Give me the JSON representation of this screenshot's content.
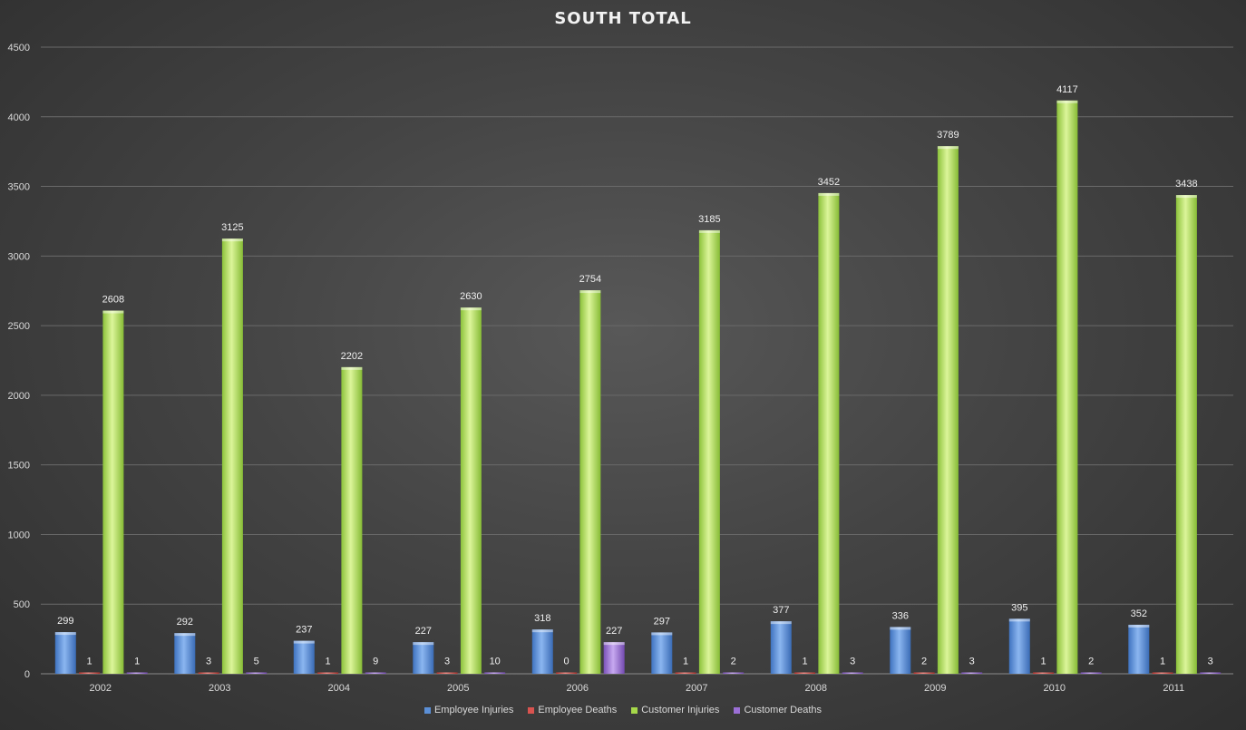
{
  "chart_data": {
    "type": "bar",
    "title": "SOUTH  TOTAL",
    "xlabel": "",
    "ylabel": "",
    "ylim": [
      0,
      4500
    ],
    "yticks": [
      0,
      500,
      1000,
      1500,
      2000,
      2500,
      3000,
      3500,
      4000,
      4500
    ],
    "grid": true,
    "legend_position": "bottom",
    "categories": [
      "2002",
      "2003",
      "2004",
      "2005",
      "2006",
      "2007",
      "2008",
      "2009",
      "2010",
      "2011"
    ],
    "series": [
      {
        "name": "Employee Injuries",
        "color": "#5b8fd6",
        "values": [
          299,
          292,
          237,
          227,
          318,
          297,
          377,
          336,
          395,
          352
        ]
      },
      {
        "name": "Employee Deaths",
        "color": "#d9534f",
        "values": [
          1,
          3,
          1,
          3,
          0,
          1,
          1,
          2,
          1,
          1
        ]
      },
      {
        "name": "Customer Injuries",
        "color": "#a6d84a",
        "values": [
          2608,
          3125,
          2202,
          2630,
          2754,
          3185,
          3452,
          3789,
          4117,
          3438
        ]
      },
      {
        "name": "Customer Deaths",
        "color": "#9b6fd6",
        "values": [
          1,
          5,
          9,
          10,
          227,
          2,
          3,
          3,
          2,
          3
        ]
      }
    ]
  }
}
